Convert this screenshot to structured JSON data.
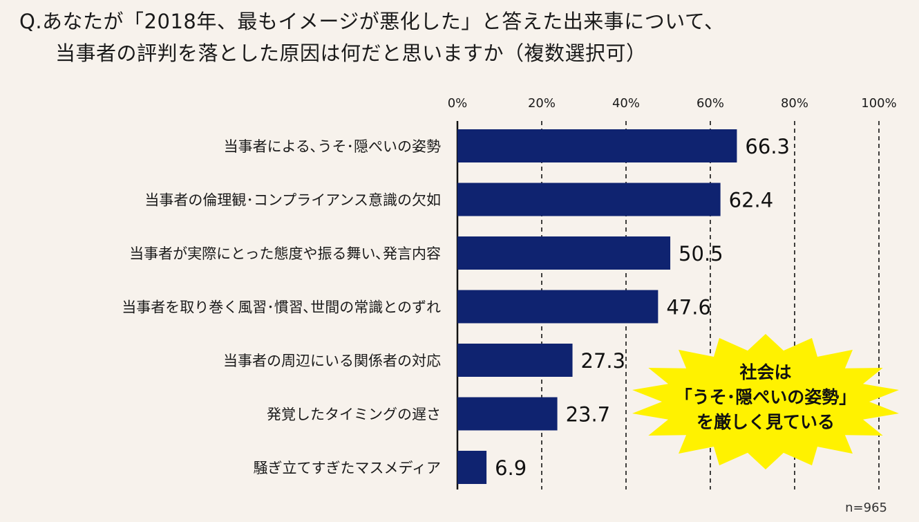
{
  "question": {
    "line1": "Q.あなたが「2018年、最もイメージが悪化した」と答えた出来事について、",
    "line2": "当事者の評判を落とした原因は何だと思いますか（複数選択可）"
  },
  "chart_data": {
    "type": "bar",
    "orientation": "horizontal",
    "categories": [
      "当事者による､うそ･隠ぺいの姿勢",
      "当事者の倫理観･コンプライアンス意識の欠如",
      "当事者が実際にとった態度や振る舞い､発言内容",
      "当事者を取り巻く風習･慣習､世間の常識とのずれ",
      "当事者の周辺にいる関係者の対応",
      "発覚したタイミングの遅さ",
      "騒ぎ立てすぎたマスメディア"
    ],
    "values": [
      66.3,
      62.4,
      50.5,
      47.6,
      27.3,
      23.7,
      6.9
    ],
    "value_labels": [
      "66.3",
      "62.4",
      "50.5",
      "47.6",
      "27.3",
      "23.7",
      "6.9"
    ],
    "xlim": [
      0,
      100
    ],
    "ticks": [
      0,
      20,
      40,
      60,
      80,
      100
    ],
    "tick_labels": [
      "0%",
      "20%",
      "40%",
      "60%",
      "80%",
      "100%"
    ],
    "axis_position": "top",
    "grid": "dashed vertical",
    "bar_color": "#0f2370",
    "sample_note": "n=965"
  },
  "callout": {
    "lines": [
      "社会は",
      "「うそ･隠ぺいの姿勢」",
      "を厳しく見ている"
    ],
    "color": "#fff200"
  }
}
